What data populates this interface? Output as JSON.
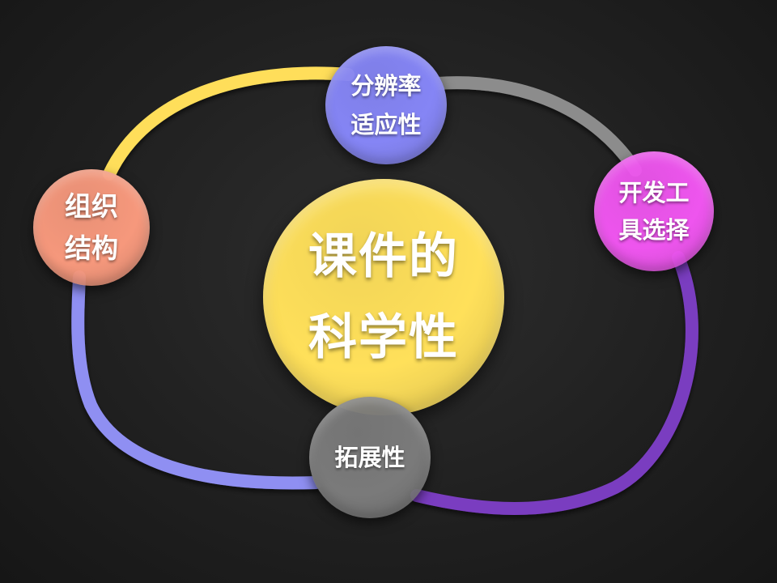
{
  "diagram": {
    "center": {
      "lines": [
        "课件的",
        "科学性"
      ],
      "color": "#ffe05a"
    },
    "nodes": {
      "resolution": {
        "lines": [
          "分辨率",
          "适应性"
        ],
        "color": "#8585f5"
      },
      "devtools": {
        "lines": [
          "开发工",
          "具选择"
        ],
        "color": "#ee55ee"
      },
      "structure": {
        "lines": [
          "组织",
          "结构"
        ],
        "color": "#f6987c"
      },
      "extensibility": {
        "lines": [
          "拓展性"
        ],
        "color": "#7a7a7a"
      }
    },
    "ring_colors": {
      "upper_left": "#ffde5a",
      "upper_right": "#8c8c8c",
      "lower_right": "#7a3cc0",
      "lower_left": "#8f8ff2"
    }
  }
}
